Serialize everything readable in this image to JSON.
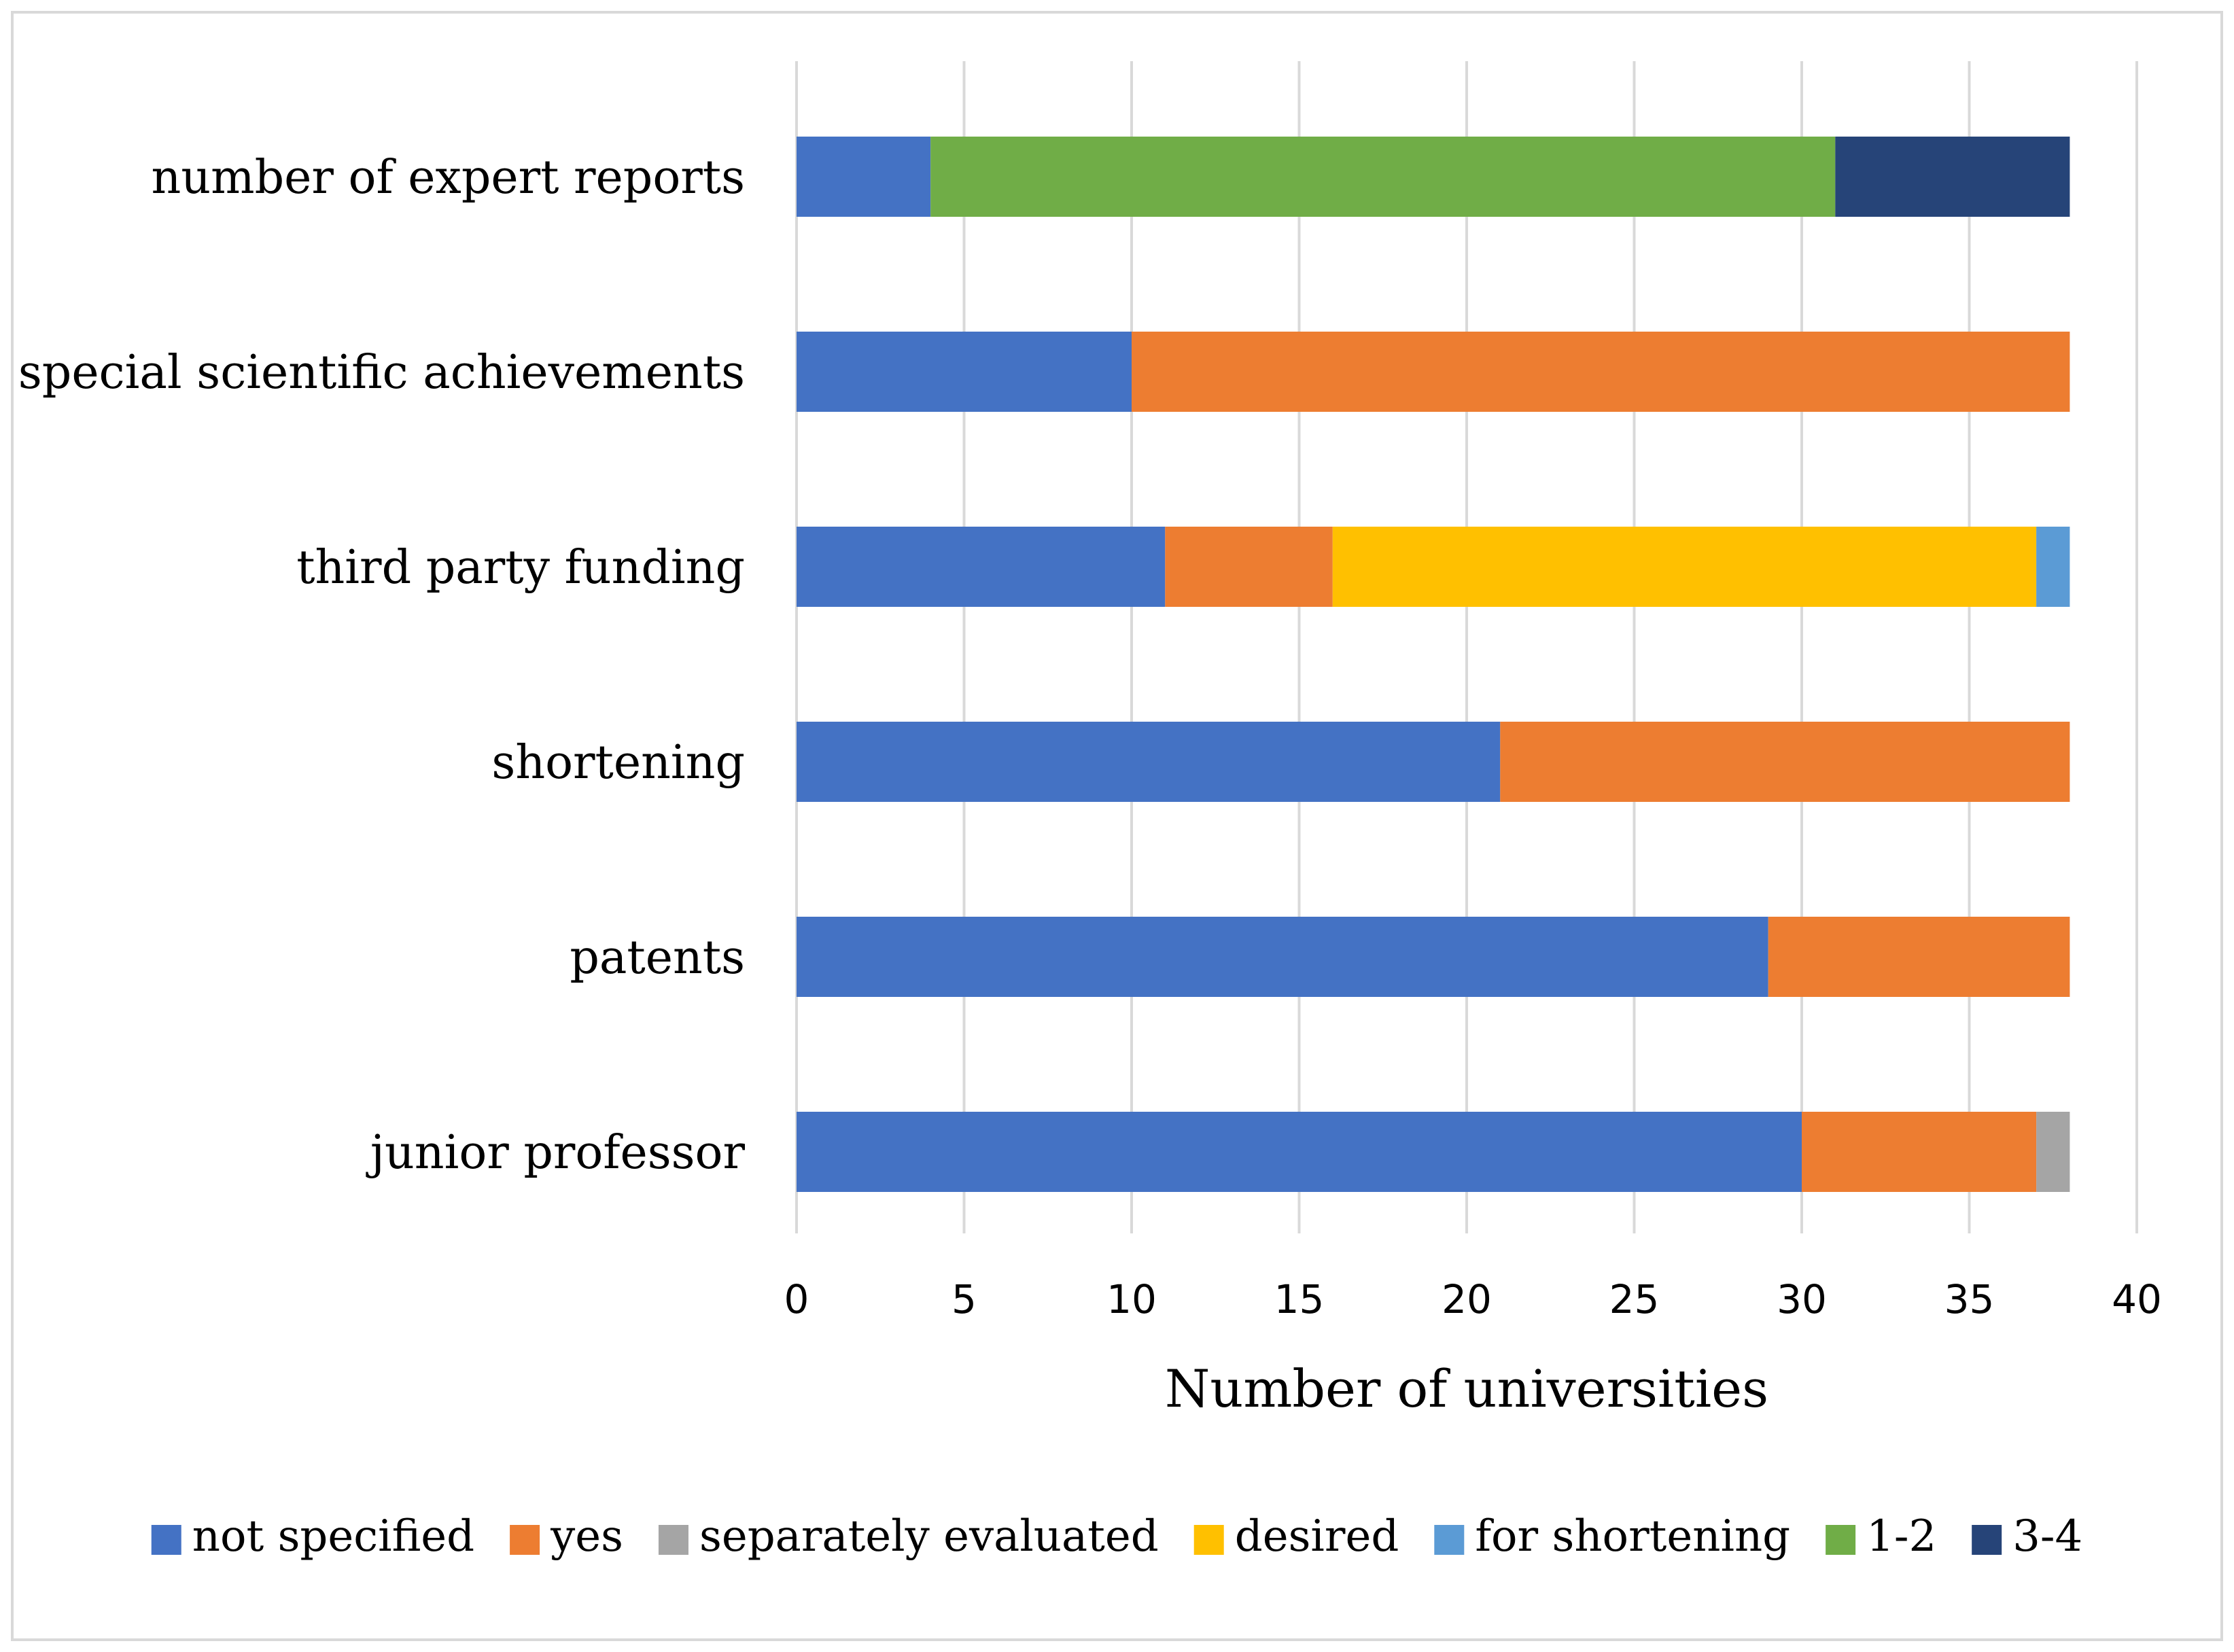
{
  "chart_data": {
    "type": "bar",
    "orientation": "horizontal",
    "stacked": true,
    "categories": [
      "number of expert reports",
      "special scientific achievements",
      "third party funding",
      "shortening",
      "patents",
      "junior professor"
    ],
    "series": [
      {
        "name": "not specified",
        "color": "#4472c4",
        "values": [
          4,
          10,
          11,
          21,
          29,
          30
        ]
      },
      {
        "name": "yes",
        "color": "#ed7d31",
        "values": [
          0,
          28,
          5,
          17,
          9,
          7
        ]
      },
      {
        "name": "separately evaluated",
        "color": "#a5a5a5",
        "values": [
          0,
          0,
          0,
          0,
          0,
          1
        ]
      },
      {
        "name": "desired",
        "color": "#ffc000",
        "values": [
          0,
          0,
          21,
          0,
          0,
          0
        ]
      },
      {
        "name": "for shortening",
        "color": "#5b9bd5",
        "values": [
          0,
          0,
          1,
          0,
          0,
          0
        ]
      },
      {
        "name": "1-2",
        "color": "#70ad47",
        "values": [
          27,
          0,
          0,
          0,
          0,
          0
        ]
      },
      {
        "name": "3-4",
        "color": "#264478",
        "values": [
          7,
          0,
          0,
          0,
          0,
          0
        ]
      }
    ],
    "xlabel": "Number of universities",
    "ylabel": "",
    "xlim": [
      0,
      40
    ],
    "xticks": [
      0,
      5,
      10,
      15,
      20,
      25,
      30,
      35,
      40
    ],
    "grid": "vertical",
    "legend": "bottom"
  }
}
